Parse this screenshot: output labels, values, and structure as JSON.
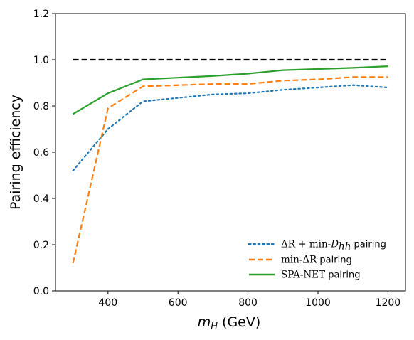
{
  "chart_data": {
    "type": "line",
    "xlabel_symbol": "m",
    "xlabel_sub": "H",
    "xlabel_unit": " (GeV)",
    "ylabel": "Pairing efficiency",
    "xlim": [
      250,
      1250
    ],
    "ylim": [
      0.0,
      1.2
    ],
    "xticks": [
      400,
      600,
      800,
      1000,
      1200
    ],
    "yticks": [
      "0.0",
      "0.2",
      "0.4",
      "0.6",
      "0.8",
      "1.0",
      "1.2"
    ],
    "grid": false,
    "legend_position": "lower-right",
    "reference": {
      "style": "dashed",
      "color": "#000000",
      "x": [
        300,
        1200
      ],
      "y": [
        1.0,
        1.0
      ]
    },
    "series": [
      {
        "name_delta": "ΔR",
        "name_plus": " + ",
        "name_min": "min-",
        "name_D": "D",
        "name_sub": "hh",
        "name_suffix": " pairing",
        "color": "#1f77b4",
        "style": "dotted",
        "x": [
          300,
          400,
          500,
          700,
          800,
          900,
          1000,
          1100,
          1200
        ],
        "y": [
          0.52,
          0.7,
          0.82,
          0.85,
          0.855,
          0.87,
          0.88,
          0.89,
          0.88
        ]
      },
      {
        "name_min": "min-",
        "name_delta": "ΔR",
        "name_suffix": " pairing",
        "color": "#ff7f0e",
        "style": "dashed",
        "x": [
          300,
          400,
          500,
          600,
          700,
          800,
          900,
          1000,
          1100,
          1200
        ],
        "y": [
          0.12,
          0.79,
          0.885,
          0.89,
          0.895,
          0.895,
          0.91,
          0.915,
          0.925,
          0.925
        ]
      },
      {
        "name_small1": "S",
        "name_small2": "PA",
        "name_dash": "-",
        "name_small3": "N",
        "name_small4": "ET",
        "name_suffix": " pairing",
        "color": "#2ca02c",
        "style": "solid",
        "x": [
          300,
          400,
          500,
          700,
          800,
          900,
          1000,
          1100,
          1200
        ],
        "y": [
          0.765,
          0.855,
          0.915,
          0.93,
          0.94,
          0.955,
          0.96,
          0.965,
          0.972
        ]
      }
    ]
  }
}
